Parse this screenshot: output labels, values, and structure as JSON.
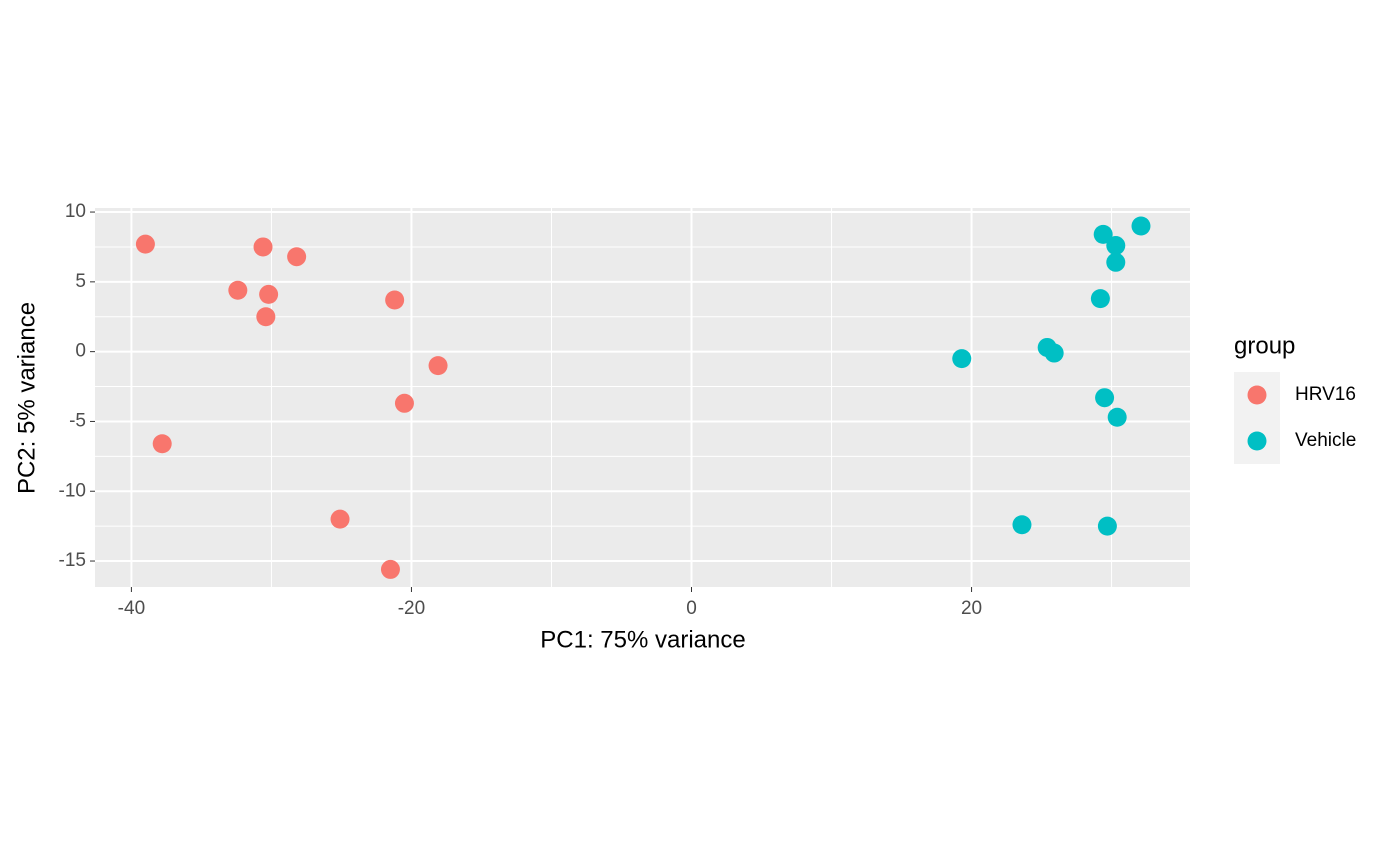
{
  "chart_data": {
    "type": "scatter",
    "xlabel": "PC1: 75% variance",
    "ylabel": "PC2: 5% variance",
    "legend_title": "group",
    "legend_position": "right",
    "grid": true,
    "xlim": [
      -42.6,
      35.6
    ],
    "ylim": [
      -16.86,
      10.29
    ],
    "xticks": [
      -40,
      -20,
      0,
      20
    ],
    "yticks": [
      10,
      5,
      0,
      -5,
      -10,
      -15
    ],
    "series": [
      {
        "name": "HRV16",
        "color": "#f8766d",
        "x": [
          -39.0,
          -30.6,
          -28.2,
          -32.4,
          -30.2,
          -21.2,
          -30.4,
          -18.1,
          -20.5,
          -37.8,
          -25.1,
          -21.5
        ],
        "values": [
          7.7,
          7.5,
          6.8,
          4.4,
          4.1,
          3.7,
          2.5,
          -1.0,
          -3.7,
          -6.6,
          -12.0,
          -15.6
        ]
      },
      {
        "name": "Vehicle",
        "color": "#00bfc4",
        "x": [
          32.1,
          29.4,
          30.3,
          30.3,
          29.2,
          19.3,
          25.4,
          25.9,
          29.5,
          30.4,
          23.6,
          29.7
        ],
        "values": [
          9.0,
          8.4,
          7.6,
          6.4,
          3.8,
          -0.5,
          0.3,
          -0.1,
          -3.3,
          -4.7,
          -12.4,
          -12.5
        ]
      }
    ]
  }
}
